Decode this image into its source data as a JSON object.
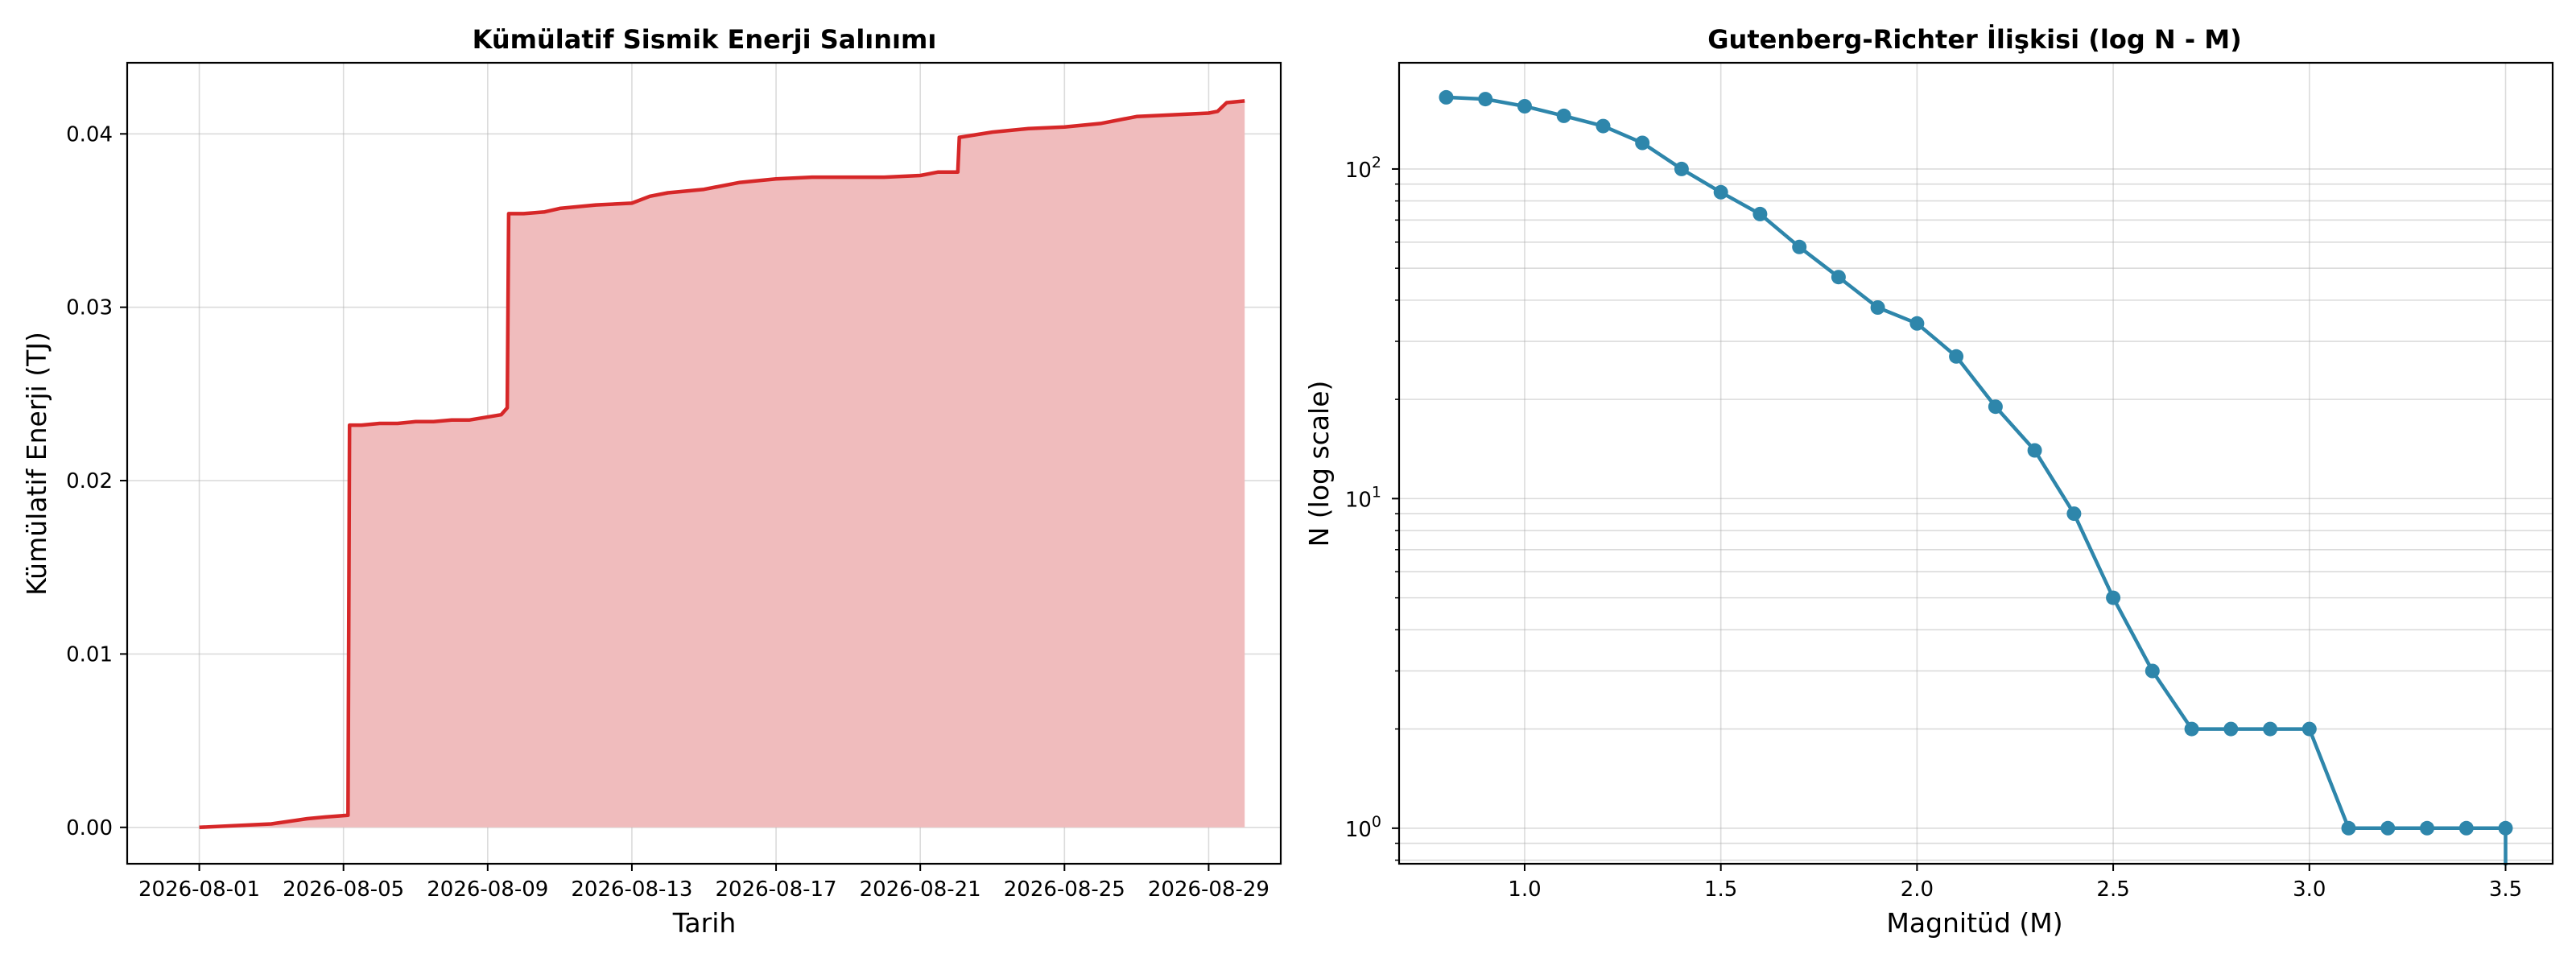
{
  "chart_data": [
    {
      "type": "area",
      "title": "Kümülatif Sismik Enerji Salınımı",
      "xlabel": "Tarih",
      "ylabel": "Kümülatif Enerji (TJ)",
      "xlim": [
        "2026-07-30",
        "2026-08-31"
      ],
      "ylim": [
        -0.0021,
        0.0441
      ],
      "x_tick_labels": [
        "2026-08-01",
        "2026-08-05",
        "2026-08-09",
        "2026-08-13",
        "2026-08-17",
        "2026-08-21",
        "2026-08-25",
        "2026-08-29"
      ],
      "y_tick_labels": [
        "0.00",
        "0.01",
        "0.02",
        "0.03",
        "0.04"
      ],
      "y_ticks": [
        0,
        0.01,
        0.02,
        0.03,
        0.04
      ],
      "grid": true,
      "line_color": "#d62728",
      "fill_color": "#f0bcbd",
      "series": [
        {
          "x": [
            "2026-08-01",
            "2026-08-02",
            "2026-08-03",
            "2026-08-04",
            "2026-08-04 12:00",
            "2026-08-05 03:00",
            "2026-08-05 04:00",
            "2026-08-05 12:00",
            "2026-08-06",
            "2026-08-06 12:00",
            "2026-08-07",
            "2026-08-07 12:00",
            "2026-08-08",
            "2026-08-08 12:00",
            "2026-08-09 09:00",
            "2026-08-09 10:00",
            "2026-08-09 13:00",
            "2026-08-09 14:00",
            "2026-08-10",
            "2026-08-10 14:00",
            "2026-08-11",
            "2026-08-11 12:00",
            "2026-08-12",
            "2026-08-13",
            "2026-08-13 12:00",
            "2026-08-14",
            "2026-08-15",
            "2026-08-16",
            "2026-08-17",
            "2026-08-18",
            "2026-08-19",
            "2026-08-20",
            "2026-08-21",
            "2026-08-21 12:00",
            "2026-08-22 01:00",
            "2026-08-22 02:00",
            "2026-08-23",
            "2026-08-24",
            "2026-08-25",
            "2026-08-26",
            "2026-08-27",
            "2026-08-28",
            "2026-08-29",
            "2026-08-29 06:00",
            "2026-08-29 12:00",
            "2026-08-30"
          ],
          "y": [
            0.0,
            0.0001,
            0.0002,
            0.0005,
            0.0006,
            0.0007,
            0.0232,
            0.0232,
            0.0233,
            0.0233,
            0.0234,
            0.0234,
            0.0235,
            0.0235,
            0.0238,
            0.0239,
            0.0242,
            0.0354,
            0.0354,
            0.0355,
            0.0357,
            0.0358,
            0.0359,
            0.036,
            0.0364,
            0.0366,
            0.0368,
            0.0372,
            0.0374,
            0.0375,
            0.0375,
            0.0375,
            0.0376,
            0.0378,
            0.0378,
            0.0398,
            0.0401,
            0.0403,
            0.0404,
            0.0406,
            0.041,
            0.0411,
            0.0412,
            0.0413,
            0.0418,
            0.0419
          ]
        }
      ]
    },
    {
      "type": "line",
      "title": "Gutenberg-Richter İlişkisi (log N - M)",
      "xlabel": "Magnitüd (M)",
      "ylabel": "N (log scale)",
      "y_scale": "log",
      "xlim": [
        0.68,
        3.62
      ],
      "ylim": [
        0.78,
        210
      ],
      "x_ticks": [
        1.0,
        1.5,
        2.0,
        2.5,
        3.0,
        3.5
      ],
      "x_tick_labels": [
        "1.0",
        "1.5",
        "2.0",
        "2.5",
        "3.0",
        "3.5"
      ],
      "y_ticks": [
        1,
        10,
        100
      ],
      "y_tick_labels": [
        {
          "base": "10",
          "exp": "0"
        },
        {
          "base": "10",
          "exp": "1"
        },
        {
          "base": "10",
          "exp": "2"
        }
      ],
      "grid": true,
      "minor_grid": true,
      "line_color": "#2e86ab",
      "series": [
        {
          "x": [
            0.8,
            0.9,
            1.0,
            1.1,
            1.2,
            1.3,
            1.4,
            1.5,
            1.6,
            1.7,
            1.8,
            1.9,
            2.0,
            2.1,
            2.2,
            2.3,
            2.4,
            2.5,
            2.6,
            2.7,
            2.8,
            2.9,
            3.0,
            3.1,
            3.2,
            3.3,
            3.4,
            3.5
          ],
          "y": [
            165,
            163,
            155,
            145,
            135,
            120,
            100,
            85,
            73,
            58,
            47,
            38,
            34,
            27,
            19,
            14,
            9,
            5,
            3,
            2,
            2,
            2,
            2,
            1,
            1,
            1,
            1,
            1
          ]
        }
      ]
    }
  ]
}
